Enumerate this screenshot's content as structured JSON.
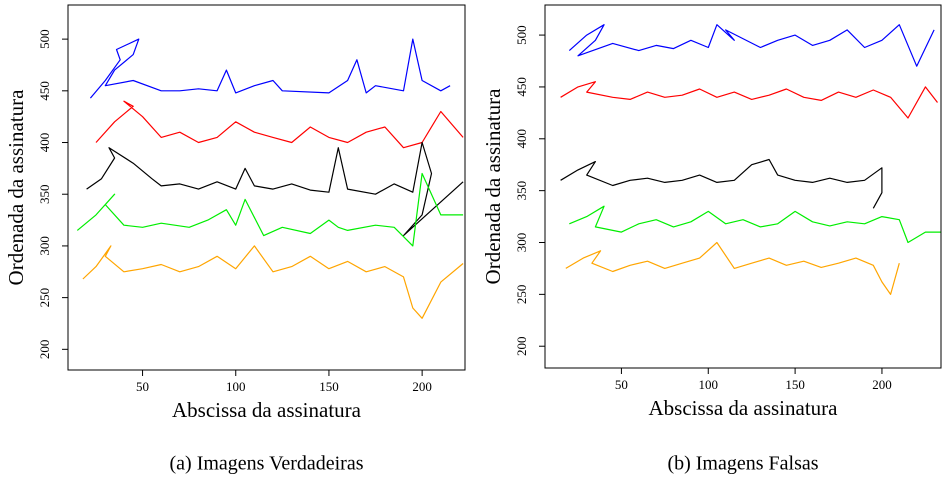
{
  "chart_data": [
    {
      "type": "line",
      "caption": "(a) Imagens Verdadeiras",
      "x_label": "Abscissa da assinatura",
      "y_label": "Ordenada da assinatura",
      "xlim": [
        10,
        223
      ],
      "ylim": [
        180,
        533
      ],
      "xticks": [
        50,
        100,
        150,
        200
      ],
      "yticks": [
        200,
        250,
        300,
        350,
        400,
        450,
        500
      ],
      "series": [
        {
          "color": "#0000ff",
          "x": [
            22,
            30,
            38,
            36,
            48,
            45,
            35,
            30,
            45,
            60,
            70,
            80,
            90,
            95,
            100,
            110,
            120,
            125,
            150,
            160,
            165,
            170,
            175,
            190,
            195,
            200,
            210,
            215
          ],
          "values": [
            443,
            460,
            480,
            490,
            500,
            485,
            470,
            455,
            460,
            450,
            450,
            452,
            450,
            470,
            448,
            455,
            460,
            450,
            448,
            460,
            480,
            448,
            455,
            450,
            500,
            460,
            450,
            455
          ]
        },
        {
          "color": "#ff0000",
          "x": [
            25,
            35,
            45,
            40,
            50,
            60,
            70,
            80,
            90,
            100,
            110,
            120,
            130,
            140,
            150,
            160,
            170,
            180,
            190,
            200,
            210,
            222
          ],
          "values": [
            400,
            420,
            435,
            440,
            425,
            405,
            410,
            400,
            405,
            420,
            410,
            405,
            400,
            415,
            405,
            400,
            410,
            415,
            395,
            400,
            430,
            405
          ]
        },
        {
          "color": "#000000",
          "x": [
            20,
            28,
            35,
            32,
            45,
            55,
            60,
            70,
            80,
            90,
            100,
            105,
            110,
            120,
            130,
            140,
            150,
            155,
            160,
            175,
            185,
            195,
            200,
            205,
            200,
            190,
            222
          ],
          "values": [
            355,
            365,
            385,
            395,
            380,
            365,
            358,
            360,
            355,
            362,
            355,
            375,
            358,
            355,
            360,
            354,
            352,
            395,
            355,
            350,
            360,
            352,
            400,
            370,
            330,
            310,
            362
          ]
        },
        {
          "color": "#00ee00",
          "x": [
            15,
            25,
            35,
            30,
            40,
            50,
            60,
            75,
            85,
            95,
            100,
            105,
            115,
            125,
            140,
            150,
            155,
            160,
            175,
            185,
            195,
            200,
            210,
            222
          ],
          "values": [
            315,
            330,
            350,
            340,
            320,
            318,
            322,
            318,
            325,
            335,
            320,
            345,
            310,
            318,
            312,
            325,
            318,
            315,
            320,
            318,
            300,
            370,
            330,
            330
          ]
        },
        {
          "color": "#ffa500",
          "x": [
            18,
            25,
            33,
            30,
            40,
            50,
            60,
            70,
            80,
            90,
            100,
            110,
            120,
            130,
            140,
            150,
            160,
            170,
            180,
            190,
            195,
            200,
            210,
            222
          ],
          "values": [
            268,
            280,
            300,
            290,
            275,
            278,
            282,
            275,
            280,
            290,
            278,
            300,
            275,
            280,
            290,
            278,
            285,
            275,
            280,
            270,
            240,
            230,
            265,
            283
          ]
        }
      ]
    },
    {
      "type": "line",
      "caption": "(b) Imagens Falsas",
      "x_label": "Abscissa da assinatura",
      "y_label": "Ordenada da assinatura",
      "xlim": [
        6,
        234
      ],
      "ylim": [
        179,
        529
      ],
      "xticks": [
        50,
        100,
        150,
        200
      ],
      "yticks": [
        200,
        250,
        300,
        350,
        400,
        450,
        500
      ],
      "series": [
        {
          "color": "#0000ff",
          "x": [
            20,
            30,
            40,
            35,
            25,
            45,
            60,
            70,
            80,
            90,
            100,
            105,
            115,
            110,
            130,
            140,
            150,
            160,
            170,
            180,
            190,
            200,
            210,
            220,
            230
          ],
          "values": [
            485,
            500,
            510,
            495,
            480,
            492,
            485,
            490,
            487,
            495,
            488,
            510,
            495,
            505,
            488,
            495,
            500,
            490,
            495,
            505,
            488,
            495,
            510,
            470,
            505
          ]
        },
        {
          "color": "#ff0000",
          "x": [
            15,
            25,
            35,
            30,
            45,
            55,
            65,
            75,
            85,
            95,
            105,
            115,
            125,
            135,
            145,
            155,
            165,
            175,
            185,
            195,
            205,
            215,
            225,
            232
          ],
          "values": [
            440,
            450,
            455,
            445,
            440,
            438,
            445,
            440,
            442,
            448,
            440,
            445,
            438,
            442,
            448,
            440,
            437,
            445,
            440,
            447,
            440,
            420,
            450,
            435
          ]
        },
        {
          "color": "#000000",
          "x": [
            15,
            25,
            35,
            30,
            45,
            55,
            65,
            75,
            85,
            95,
            105,
            115,
            125,
            135,
            140,
            150,
            160,
            170,
            180,
            190,
            200,
            200,
            195
          ],
          "values": [
            360,
            370,
            378,
            365,
            355,
            360,
            362,
            358,
            360,
            365,
            358,
            360,
            375,
            380,
            365,
            360,
            358,
            362,
            358,
            360,
            372,
            348,
            333
          ]
        },
        {
          "color": "#00ee00",
          "x": [
            20,
            30,
            40,
            35,
            50,
            60,
            70,
            80,
            90,
            100,
            110,
            120,
            130,
            140,
            150,
            160,
            170,
            180,
            190,
            200,
            210,
            215,
            225,
            234
          ],
          "values": [
            318,
            325,
            335,
            315,
            310,
            318,
            322,
            315,
            320,
            330,
            318,
            322,
            315,
            318,
            330,
            320,
            316,
            320,
            318,
            325,
            322,
            300,
            310,
            310
          ]
        },
        {
          "color": "#ffa500",
          "x": [
            18,
            28,
            38,
            33,
            45,
            55,
            65,
            75,
            85,
            95,
            105,
            115,
            125,
            135,
            145,
            155,
            165,
            175,
            185,
            195,
            200,
            205,
            210
          ],
          "values": [
            275,
            285,
            292,
            280,
            272,
            278,
            282,
            275,
            280,
            285,
            300,
            275,
            280,
            285,
            278,
            282,
            276,
            280,
            285,
            278,
            262,
            250,
            280
          ]
        }
      ]
    }
  ]
}
